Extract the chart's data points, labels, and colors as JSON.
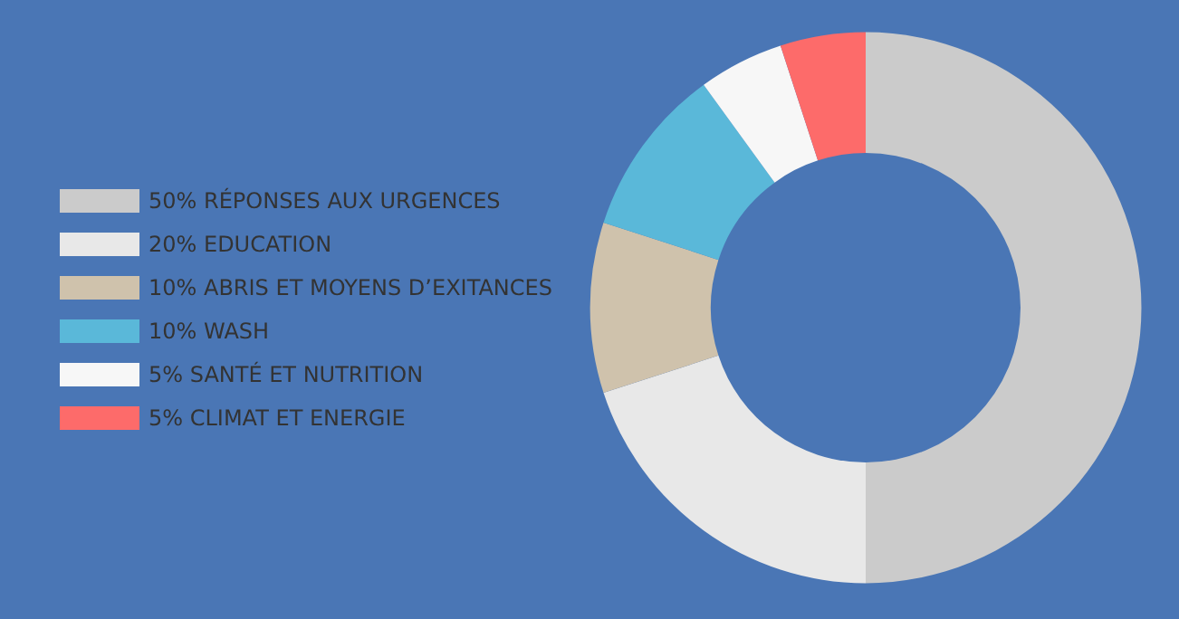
{
  "chart_data": {
    "type": "donut",
    "categories": [
      "50% RÉPONSES AUX URGENCES",
      "20% EDUCATION",
      "10% ABRIS ET MOYENS D’EXITANCES",
      "10% WASH",
      "5% SANTÉ ET NUTRITION",
      "5% CLIMAT ET ENERGIE"
    ],
    "values": [
      50,
      20,
      10,
      10,
      5,
      5
    ],
    "colors": [
      "#cbcbcb",
      "#e8e8e8",
      "#cfc2ac",
      "#5ab8d9",
      "#f7f7f7",
      "#fd6b6a"
    ],
    "legend": "left"
  }
}
